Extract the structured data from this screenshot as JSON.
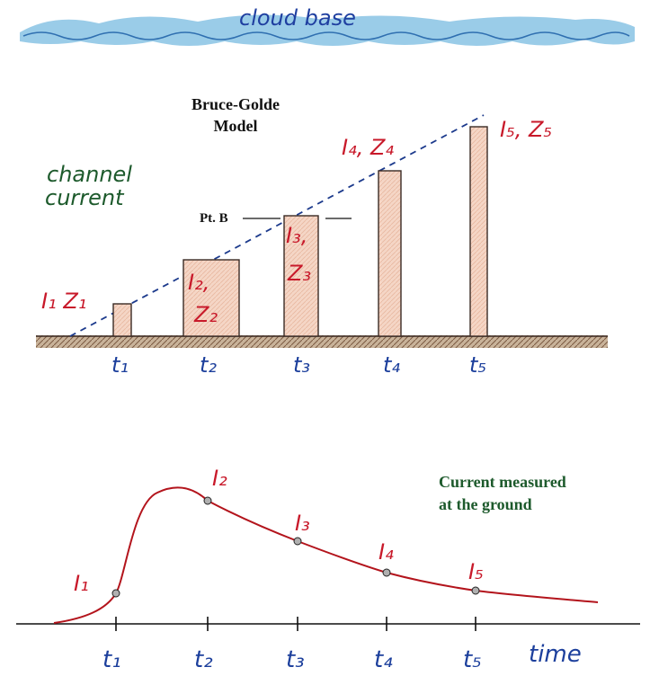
{
  "cloud_label": "cloud base",
  "model_title_line1": "Bruce-Golde",
  "model_title_line2": "Model",
  "channel_label_line1": "channel",
  "channel_label_line2": "current",
  "point_b_label": "Pt. B",
  "bars": [
    {
      "id": "1",
      "label_lines": [
        "I₁ Z₁"
      ],
      "time_label": "t₁"
    },
    {
      "id": "2",
      "label_lines": [
        "I₂,",
        "Z₂"
      ],
      "time_label": "t₂"
    },
    {
      "id": "3",
      "label_lines": [
        "I₃,",
        "Z₃"
      ],
      "time_label": "t₃"
    },
    {
      "id": "4",
      "label_lines": [
        "I₄, Z₄"
      ],
      "time_label": "t₄"
    },
    {
      "id": "5",
      "label_lines": [
        "I₅, Z₅"
      ],
      "time_label": "t₅"
    }
  ],
  "ground_curve": {
    "annotation_line1": "Current measured",
    "annotation_line2": "at the ground",
    "point_labels": [
      "I₁",
      "I₂",
      "I₃",
      "I₄",
      "I₅"
    ],
    "axis_ticks": [
      "t₁",
      "t₂",
      "t₃",
      "t₄",
      "t₅"
    ],
    "axis_label": "time"
  },
  "colors": {
    "cloud": "#6fb3dc",
    "cloud_text": "#1f3fa0",
    "bar_fill": "#f5d6c6",
    "bar_stroke": "#3a2a24",
    "red_text": "#c8192a",
    "blue_text": "#1c3f9c",
    "green_text": "#1d5a2c",
    "dashed": "#1c3a8c",
    "curve": "#b3141c",
    "ground": "#8a6a52"
  }
}
